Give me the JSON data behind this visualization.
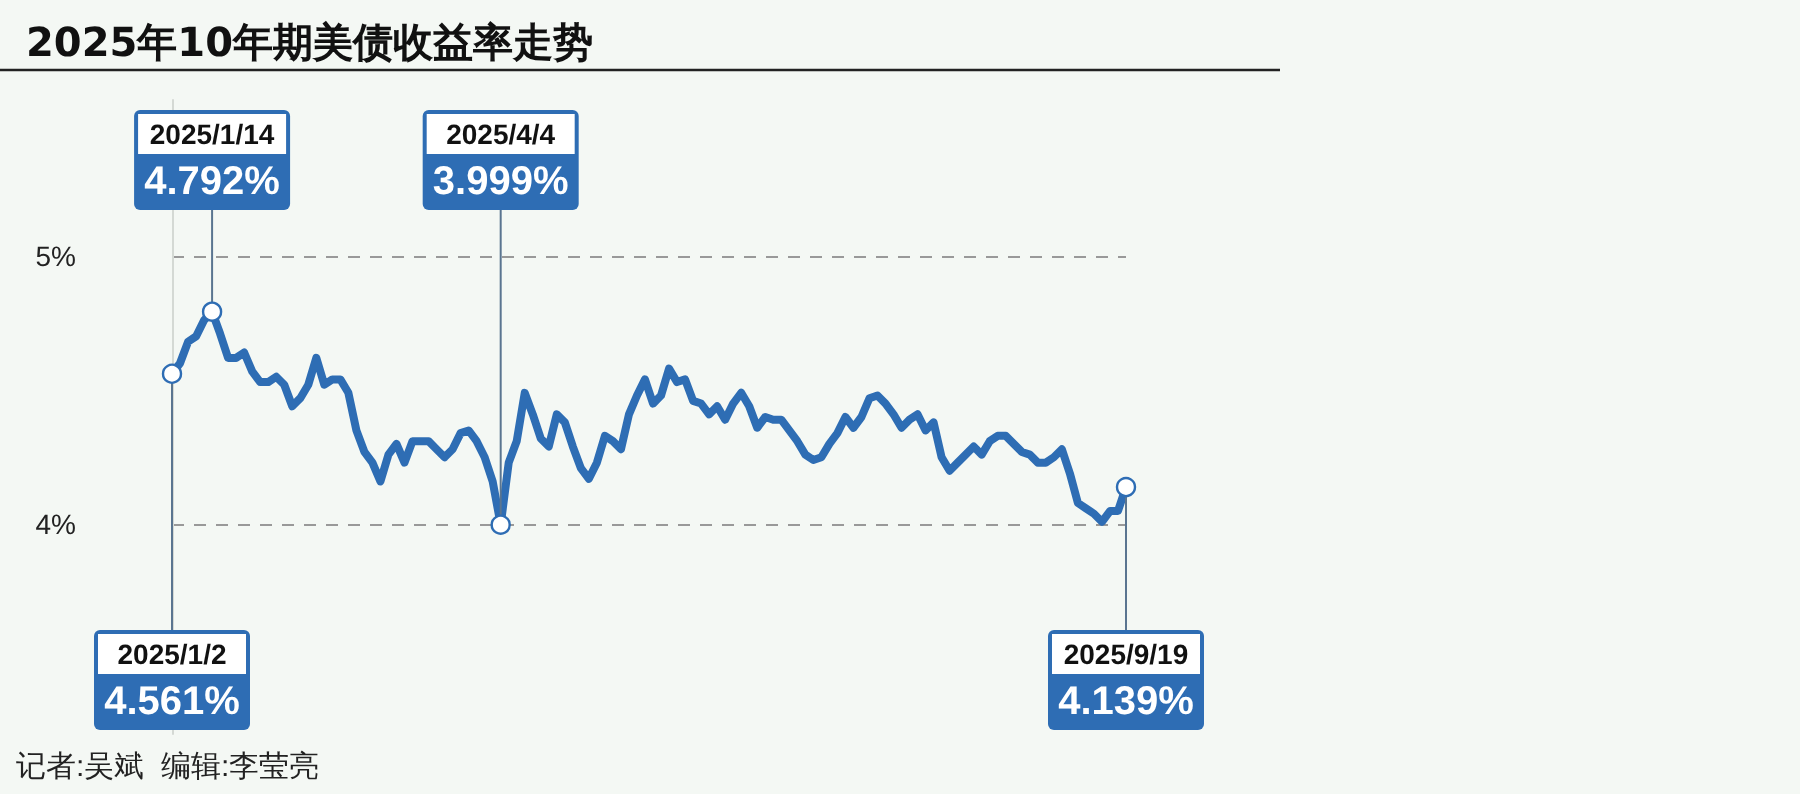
{
  "chart_data": {
    "type": "line",
    "title": "2025年10年期美债收益率走势",
    "categories": [
      null,
      null,
      null,
      null,
      null,
      null,
      null,
      null,
      null,
      null,
      null,
      null,
      null,
      null,
      null,
      null,
      null,
      null,
      null,
      null,
      null,
      null,
      null,
      null,
      null,
      null,
      null,
      null,
      null,
      null,
      null,
      null,
      null,
      null,
      null,
      null,
      null,
      null,
      null,
      null,
      null,
      null,
      null,
      null,
      null,
      null,
      null,
      null,
      null,
      null,
      null,
      null,
      null,
      null,
      null,
      null,
      null,
      null,
      null,
      null,
      null,
      null,
      null,
      null,
      null,
      null,
      null,
      null,
      null,
      null,
      null,
      null,
      null,
      null,
      null,
      null,
      null,
      null,
      null,
      null,
      null,
      null,
      null,
      null,
      null,
      null,
      null,
      null,
      null,
      null,
      null,
      null,
      null,
      null,
      null,
      null,
      null,
      null,
      null,
      null,
      null,
      null,
      null,
      null,
      null,
      null,
      null,
      null,
      null,
      null,
      null,
      null,
      null,
      null,
      null,
      null,
      null,
      null,
      null,
      null
    ],
    "series": [
      {
        "color": "#2e6db4",
        "values": [
          4.561,
          4.6,
          4.68,
          4.7,
          4.76,
          4.792,
          4.71,
          4.62,
          4.62,
          4.64,
          4.57,
          4.53,
          4.53,
          4.55,
          4.52,
          4.44,
          4.47,
          4.52,
          4.62,
          4.52,
          4.54,
          4.54,
          4.49,
          4.35,
          4.27,
          4.23,
          4.16,
          4.26,
          4.3,
          4.23,
          4.31,
          4.31,
          4.31,
          4.28,
          4.25,
          4.28,
          4.34,
          4.35,
          4.31,
          4.25,
          4.16,
          3.999,
          4.23,
          4.31,
          4.49,
          4.41,
          4.32,
          4.29,
          4.41,
          4.38,
          4.29,
          4.21,
          4.17,
          4.23,
          4.33,
          4.31,
          4.28,
          4.41,
          4.48,
          4.54,
          4.45,
          4.48,
          4.58,
          4.53,
          4.54,
          4.46,
          4.45,
          4.41,
          4.44,
          4.39,
          4.45,
          4.49,
          4.44,
          4.36,
          4.4,
          4.39,
          4.39,
          4.35,
          4.31,
          4.26,
          4.24,
          4.25,
          4.3,
          4.34,
          4.4,
          4.36,
          4.4,
          4.47,
          4.48,
          4.45,
          4.41,
          4.36,
          4.39,
          4.41,
          4.35,
          4.38,
          4.25,
          4.2,
          4.23,
          4.26,
          4.29,
          4.26,
          4.31,
          4.33,
          4.33,
          4.3,
          4.27,
          4.26,
          4.23,
          4.23,
          4.25,
          4.28,
          4.19,
          4.08,
          4.06,
          4.04,
          4.01,
          4.05,
          4.05,
          4.139
        ]
      }
    ],
    "ylim": [
      3.22,
      5.58
    ],
    "yticks": [
      {
        "value": 4,
        "label": "4%"
      },
      {
        "value": 5,
        "label": "5%"
      }
    ],
    "grid": "y",
    "tick_labels": "y",
    "marker": "none",
    "line_style": "solid",
    "annotations": [
      {
        "text": "2025/1/2\n4.561%",
        "y": 4.561
      },
      {
        "text": "2025/1/14\n4.792%",
        "y": 4.792
      },
      {
        "text": "2025/4/4\n3.999%",
        "y": 3.999
      },
      {
        "text": "2025/9/19\n4.139%",
        "y": 4.139
      },
      "记者:吴斌  编辑:李莹亮"
    ]
  }
}
